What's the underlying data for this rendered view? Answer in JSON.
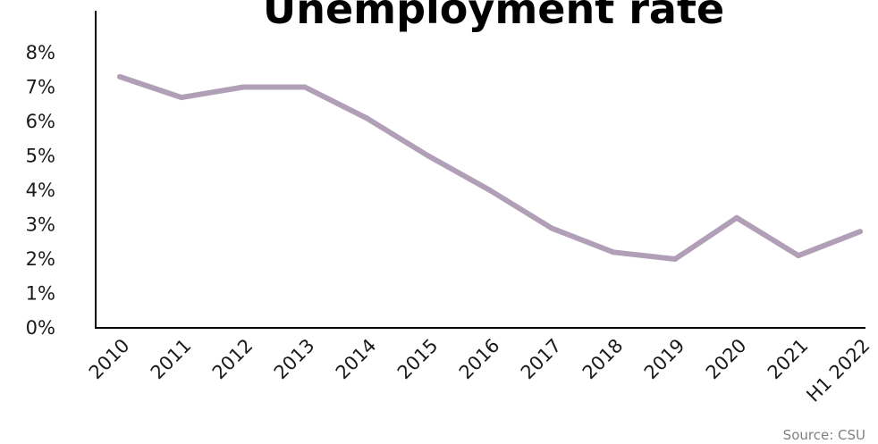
{
  "chart_data": {
    "type": "line",
    "title": "Unemployment rate",
    "source": "Source: CSU",
    "categories": [
      "2010",
      "2011",
      "2012",
      "2013",
      "2014",
      "2015",
      "2016",
      "2017",
      "2018",
      "2019",
      "2020",
      "2021",
      "H1 2022"
    ],
    "series": [
      {
        "values": [
          7.3,
          6.7,
          7.0,
          7.0,
          6.1,
          5.0,
          4.0,
          2.9,
          2.2,
          2.0,
          3.2,
          2.1,
          2.8
        ]
      }
    ],
    "yticks": [
      "0%",
      "1%",
      "2%",
      "3%",
      "4%",
      "5%",
      "6%",
      "7%",
      "8%"
    ],
    "ylim": [
      0,
      8
    ],
    "grid": false,
    "line_color": "#b09fb6",
    "axis_color": "#000000"
  }
}
